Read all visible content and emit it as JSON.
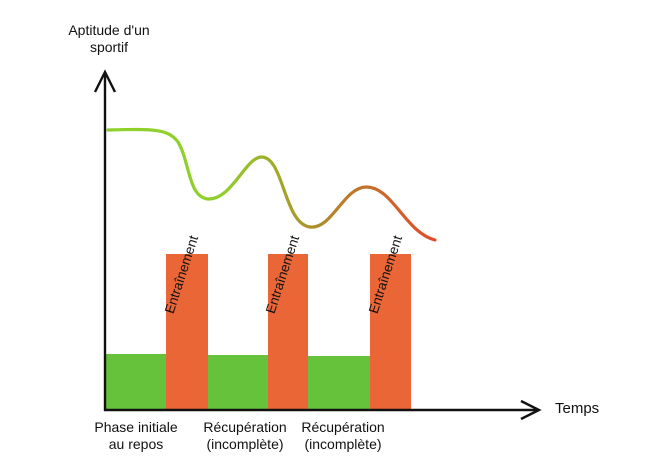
{
  "y_axis_title_line1": "Aptitude d'un",
  "y_axis_title_line2": "sportif",
  "x_axis_title": "Temps",
  "phases": [
    {
      "label_line1": "Phase initiale",
      "label_line2": "au repos",
      "color": "#66c23a"
    },
    {
      "label_line1": "Récupération",
      "label_line2": "(incomplète)",
      "color": "#66c23a"
    },
    {
      "label_line1": "Récupération",
      "label_line2": "(incomplète)",
      "color": "#66c23a"
    }
  ],
  "training_bars": [
    {
      "label": "Entraînement",
      "color": "#ea6637"
    },
    {
      "label": "Entraînement",
      "color": "#ea6637"
    },
    {
      "label": "Entraînement",
      "color": "#ea6637"
    }
  ],
  "curve_colors": {
    "start": "#8fd12a",
    "end": "#e24a2a"
  },
  "axis_color": "#111111"
}
